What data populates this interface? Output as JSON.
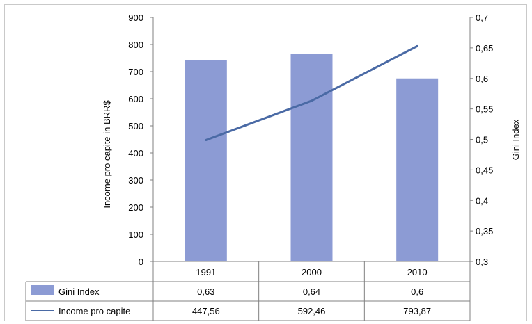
{
  "chart_data": {
    "type": "bar",
    "categories": [
      "1991",
      "2000",
      "2010"
    ],
    "series": [
      {
        "name": "Gini Index",
        "kind": "bar",
        "axis": "right",
        "values": [
          0.63,
          0.64,
          0.6
        ],
        "labels": [
          "0,63",
          "0,64",
          "0,6"
        ],
        "color": "#8C9BD4"
      },
      {
        "name": "Income pro capite",
        "kind": "line",
        "axis": "left",
        "values": [
          447.56,
          592.46,
          793.87
        ],
        "labels": [
          "447,56",
          "592,46",
          "793,87"
        ],
        "color": "#4A6AA5"
      }
    ],
    "ylabel": "Income pro capite in BRR$",
    "y2label": "Gini Index",
    "ylim": [
      0,
      900
    ],
    "yticks": [
      "0",
      "100",
      "200",
      "300",
      "400",
      "500",
      "600",
      "700",
      "800",
      "900"
    ],
    "y2lim": [
      0.3,
      0.7
    ],
    "y2ticks": [
      "0,3",
      "0,35",
      "0,4",
      "0,45",
      "0,5",
      "0,55",
      "0,6",
      "0,65",
      "0,7"
    ],
    "grid": false,
    "legend": "data table below chart"
  }
}
